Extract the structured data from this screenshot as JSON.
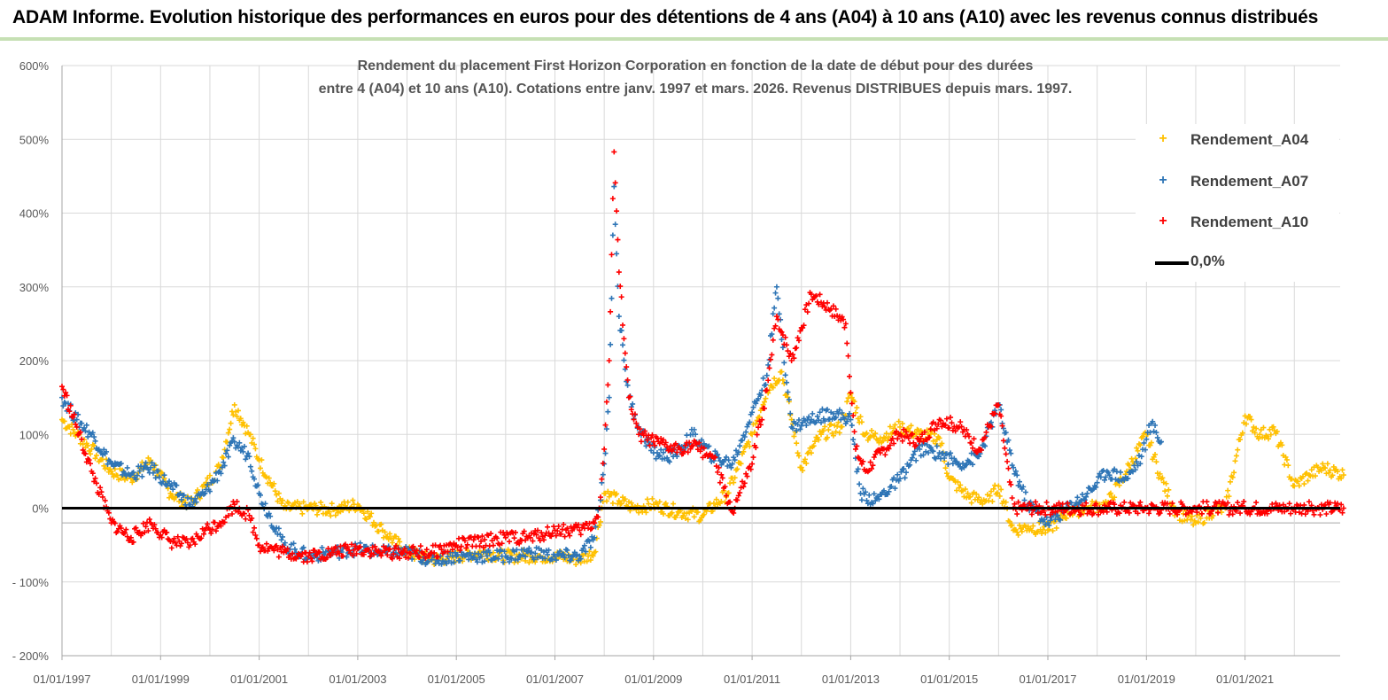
{
  "banner": {
    "title": "ADAM Informe. Evolution historique des performances en euros pour des détentions de 4 ans (A04) à 10 ans (A10) avec les revenus connus distribués"
  },
  "colors": {
    "A04": "#ffc000",
    "A07": "#2e75b6",
    "A10": "#ff0000",
    "zero": "#000000",
    "grid": "#d9d9d9",
    "banner_rule": "#c6e0b4"
  },
  "chart_data": {
    "type": "scatter",
    "title_line1": "Rendement du placement First Horizon Corporation en fonction de la date de début pour des durées",
    "title_line2": "entre 4 (A04) et 10 ans (A10). Cotations entre janv. 1997 et mars. 2026. Revenus DISTRIBUES depuis mars. 1997.",
    "xlabel": "",
    "ylabel": "",
    "x_range": [
      1997.0,
      2023.0
    ],
    "ylim": [
      -200,
      600
    ],
    "y_ticks": [
      -200,
      -100,
      0,
      100,
      200,
      300,
      400,
      500,
      600
    ],
    "y_tick_labels": [
      "- 200%",
      "- 100%",
      "0%",
      "100%",
      "200%",
      "300%",
      "400%",
      "500%",
      "600%"
    ],
    "x_ticks": [
      1997,
      1999,
      2001,
      2003,
      2005,
      2007,
      2009,
      2011,
      2013,
      2015,
      2017,
      2019,
      2021
    ],
    "x_tick_labels": [
      "01/01/1997",
      "01/01/1999",
      "01/01/2001",
      "01/01/2003",
      "01/01/2005",
      "01/01/2007",
      "01/01/2009",
      "01/01/2011",
      "01/01/2013",
      "01/01/2015",
      "01/01/2017",
      "01/01/2019",
      "01/01/2021"
    ],
    "legend_position": "top-right",
    "series": [
      {
        "name": "Rendement_A04",
        "color": "#ffc000",
        "x": [
          1997.0,
          1997.3,
          1997.6,
          1998.0,
          1998.4,
          1998.8,
          1999.2,
          1999.6,
          1999.9,
          2000.2,
          2000.5,
          2000.8,
          2001.0,
          2001.5,
          2002.0,
          2002.5,
          2003.0,
          2003.5,
          2004.0,
          2004.5,
          2005.0,
          2005.5,
          2006.0,
          2006.5,
          2007.0,
          2007.5,
          2007.8,
          2008.0,
          2008.3,
          2008.6,
          2009.0,
          2009.5,
          2010.0,
          2010.5,
          2011.0,
          2011.3,
          2011.6,
          2012.0,
          2012.4,
          2012.8,
          2013.0,
          2013.3,
          2013.6,
          2014.0,
          2014.4,
          2014.8,
          2015.0,
          2015.4,
          2015.8,
          2016.0,
          2016.3,
          2016.6,
          2017.0,
          2017.4,
          2017.8,
          2018.2,
          2018.6,
          2019.0,
          2019.3,
          2019.6,
          2020.0,
          2020.3,
          2020.6,
          2021.0,
          2021.3,
          2021.6,
          2022.0,
          2022.3,
          2022.6,
          2023.0
        ],
        "values": [
          120,
          100,
          80,
          50,
          40,
          65,
          20,
          5,
          30,
          55,
          140,
          100,
          65,
          0,
          0,
          -2,
          5,
          -30,
          -60,
          -70,
          -65,
          -60,
          -65,
          -65,
          -65,
          -70,
          -60,
          20,
          10,
          0,
          5,
          -5,
          -10,
          20,
          100,
          160,
          185,
          55,
          100,
          110,
          155,
          100,
          95,
          110,
          100,
          95,
          40,
          15,
          10,
          30,
          -30,
          -25,
          -30,
          -5,
          0,
          5,
          50,
          100,
          40,
          -5,
          -20,
          -5,
          0,
          125,
          100,
          105,
          30,
          45,
          55,
          45
        ]
      },
      {
        "name": "Rendement_A07",
        "color": "#2e75b6",
        "x": [
          1997.0,
          1997.3,
          1997.6,
          1998.0,
          1998.4,
          1998.8,
          1999.2,
          1999.6,
          1999.9,
          2000.2,
          2000.5,
          2000.8,
          2001.0,
          2001.5,
          2002.0,
          2002.5,
          2003.0,
          2003.5,
          2004.0,
          2004.5,
          2005.0,
          2005.5,
          2006.0,
          2006.5,
          2007.0,
          2007.5,
          2007.8,
          2007.9,
          2008.0,
          2008.1,
          2008.2,
          2008.3,
          2008.5,
          2008.7,
          2009.0,
          2009.4,
          2009.8,
          2010.2,
          2010.6,
          2011.0,
          2011.3,
          2011.5,
          2011.8,
          2012.2,
          2012.6,
          2013.0,
          2013.2,
          2013.5,
          2014.0,
          2014.4,
          2014.8,
          2015.2,
          2015.6,
          2016.0,
          2016.3,
          2016.6,
          2017.0,
          2017.4,
          2017.8,
          2018.2,
          2018.6,
          2018.9,
          2019.1,
          2019.3
        ],
        "values": [
          150,
          120,
          100,
          60,
          45,
          55,
          30,
          5,
          20,
          50,
          90,
          70,
          20,
          -50,
          -65,
          -60,
          -55,
          -60,
          -60,
          -70,
          -65,
          -65,
          -65,
          -60,
          -65,
          -65,
          -40,
          0,
          60,
          150,
          436,
          260,
          150,
          110,
          75,
          70,
          100,
          70,
          60,
          130,
          180,
          300,
          110,
          120,
          130,
          120,
          20,
          10,
          40,
          80,
          75,
          60,
          70,
          140,
          55,
          5,
          -20,
          0,
          20,
          50,
          40,
          70,
          115,
          90
        ]
      },
      {
        "name": "Rendement_A10",
        "color": "#ff0000",
        "x": [
          1997.0,
          1997.3,
          1997.6,
          1998.0,
          1998.4,
          1998.8,
          1999.2,
          1999.6,
          1999.9,
          2000.2,
          2000.5,
          2000.8,
          2001.0,
          2001.5,
          2002.0,
          2002.5,
          2003.0,
          2003.5,
          2004.0,
          2004.5,
          2005.0,
          2005.5,
          2006.0,
          2006.5,
          2007.0,
          2007.5,
          2007.8,
          2007.9,
          2008.0,
          2008.1,
          2008.2,
          2008.3,
          2008.5,
          2008.7,
          2009.0,
          2009.4,
          2009.8,
          2010.2,
          2010.6,
          2011.0,
          2011.3,
          2011.5,
          2011.8,
          2012.2,
          2012.6,
          2012.9,
          2013.1,
          2013.3,
          2013.6,
          2014.0,
          2014.4,
          2014.8,
          2015.2,
          2015.6,
          2016.0,
          2016.3,
          2016.6,
          2017.0,
          2017.5,
          2018.0,
          2018.5,
          2019.0,
          2019.5,
          2020.0,
          2020.5,
          2021.0,
          2021.5,
          2022.0,
          2022.5,
          2023.0
        ],
        "values": [
          165,
          110,
          50,
          -20,
          -40,
          -20,
          -45,
          -50,
          -30,
          -20,
          5,
          -10,
          -50,
          -60,
          -65,
          -60,
          -55,
          -60,
          -60,
          -60,
          -50,
          -45,
          -40,
          -40,
          -30,
          -30,
          -20,
          0,
          80,
          200,
          483,
          320,
          150,
          100,
          90,
          80,
          85,
          70,
          -5,
          60,
          160,
          260,
          200,
          290,
          270,
          250,
          80,
          50,
          75,
          100,
          90,
          120,
          110,
          80,
          140,
          0,
          0,
          0,
          0,
          0,
          0,
          0,
          0,
          0,
          0,
          0,
          0,
          0,
          0,
          0
        ]
      }
    ],
    "reference_line": {
      "name": "0,0%",
      "value": 0
    }
  }
}
